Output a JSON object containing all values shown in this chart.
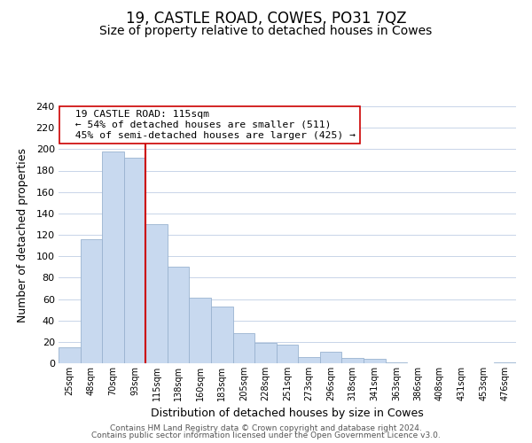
{
  "title": "19, CASTLE ROAD, COWES, PO31 7QZ",
  "subtitle": "Size of property relative to detached houses in Cowes",
  "xlabel": "Distribution of detached houses by size in Cowes",
  "ylabel": "Number of detached properties",
  "footer_line1": "Contains HM Land Registry data © Crown copyright and database right 2024.",
  "footer_line2": "Contains public sector information licensed under the Open Government Licence v3.0.",
  "bar_labels": [
    "25sqm",
    "48sqm",
    "70sqm",
    "93sqm",
    "115sqm",
    "138sqm",
    "160sqm",
    "183sqm",
    "205sqm",
    "228sqm",
    "251sqm",
    "273sqm",
    "296sqm",
    "318sqm",
    "341sqm",
    "363sqm",
    "386sqm",
    "408sqm",
    "431sqm",
    "453sqm",
    "476sqm"
  ],
  "bar_values": [
    15,
    116,
    198,
    192,
    130,
    90,
    61,
    53,
    28,
    19,
    17,
    6,
    11,
    5,
    4,
    1,
    0,
    0,
    0,
    0,
    1
  ],
  "bar_color": "#c8d9ef",
  "bar_edge_color": "#9ab3d0",
  "vline_x_index": 4,
  "vline_color": "#cc0000",
  "annotation_title": "19 CASTLE ROAD: 115sqm",
  "annotation_line1": "← 54% of detached houses are smaller (511)",
  "annotation_line2": "45% of semi-detached houses are larger (425) →",
  "annotation_box_color": "#ffffff",
  "annotation_box_edge": "#cc0000",
  "ylim": [
    0,
    240
  ],
  "yticks": [
    0,
    20,
    40,
    60,
    80,
    100,
    120,
    140,
    160,
    180,
    200,
    220,
    240
  ],
  "background_color": "#ffffff",
  "grid_color": "#c8d4e8",
  "title_fontsize": 12,
  "subtitle_fontsize": 10,
  "axis_label_fontsize": 9,
  "tick_fontsize": 8,
  "footer_fontsize": 6.5
}
